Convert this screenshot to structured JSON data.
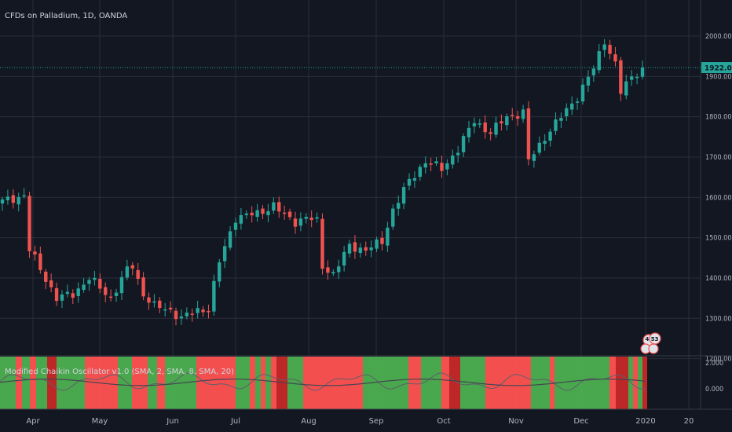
{
  "chart": {
    "title": "CFDs on Palladium, 1D, OANDA",
    "price_label": "1922.000",
    "indicator_title": "Modified Chaikin Oscillator v1.0 (SMA, 2, SMA, 8, SMA, 20)",
    "x_labels": [
      "Apr",
      "May",
      "Jun",
      "Jul",
      "Aug",
      "Sep",
      "Oct",
      "Nov",
      "Dec",
      "2020",
      "20"
    ],
    "bubble_text": "4 53"
  },
  "chart_data": {
    "type": "candlestick",
    "y_ticks": [
      "2000.000",
      "1900.000",
      "1800.000",
      "1700.000",
      "1600.000",
      "1500.000",
      "1400.000",
      "1300.000",
      "1200.000"
    ],
    "y_values": [
      2000,
      1900,
      1800,
      1700,
      1600,
      1500,
      1400,
      1300,
      1200
    ],
    "indicator_ticks": [
      "2.000",
      "0.000"
    ],
    "indicator_values": [
      2,
      0
    ],
    "last_price": 1922,
    "colors": {
      "up": "#26a69a",
      "down": "#ef5350",
      "indicator_up": "#4caf50",
      "indicator_down": "#ff5252",
      "indicator_strong_down": "#c62828",
      "price_line": "#26a69a"
    },
    "close_path": [
      [
        0,
        1590
      ],
      [
        4,
        1605
      ],
      [
        5,
        1470
      ],
      [
        10,
        1350
      ],
      [
        13,
        1360
      ],
      [
        16,
        1400
      ],
      [
        20,
        1350
      ],
      [
        23,
        1420
      ],
      [
        24,
        1430
      ],
      [
        26,
        1360
      ],
      [
        28,
        1330
      ],
      [
        31,
        1320
      ],
      [
        33,
        1300
      ],
      [
        36,
        1320
      ],
      [
        38,
        1325
      ],
      [
        40,
        1440
      ],
      [
        43,
        1550
      ],
      [
        47,
        1560
      ],
      [
        50,
        1580
      ],
      [
        52,
        1555
      ],
      [
        54,
        1540
      ],
      [
        56,
        1550
      ],
      [
        58,
        1540
      ],
      [
        59,
        1430
      ],
      [
        61,
        1410
      ],
      [
        64,
        1480
      ],
      [
        67,
        1470
      ],
      [
        70,
        1490
      ],
      [
        72,
        1570
      ],
      [
        75,
        1640
      ],
      [
        78,
        1690
      ],
      [
        81,
        1670
      ],
      [
        84,
        1720
      ],
      [
        87,
        1790
      ],
      [
        90,
        1760
      ],
      [
        93,
        1800
      ],
      [
        96,
        1810
      ],
      [
        97,
        1690
      ],
      [
        100,
        1750
      ],
      [
        103,
        1800
      ],
      [
        106,
        1850
      ],
      [
        109,
        1920
      ],
      [
        111,
        1990
      ],
      [
        113,
        1930
      ],
      [
        114,
        1860
      ],
      [
        116,
        1900
      ],
      [
        118,
        1922
      ]
    ]
  }
}
